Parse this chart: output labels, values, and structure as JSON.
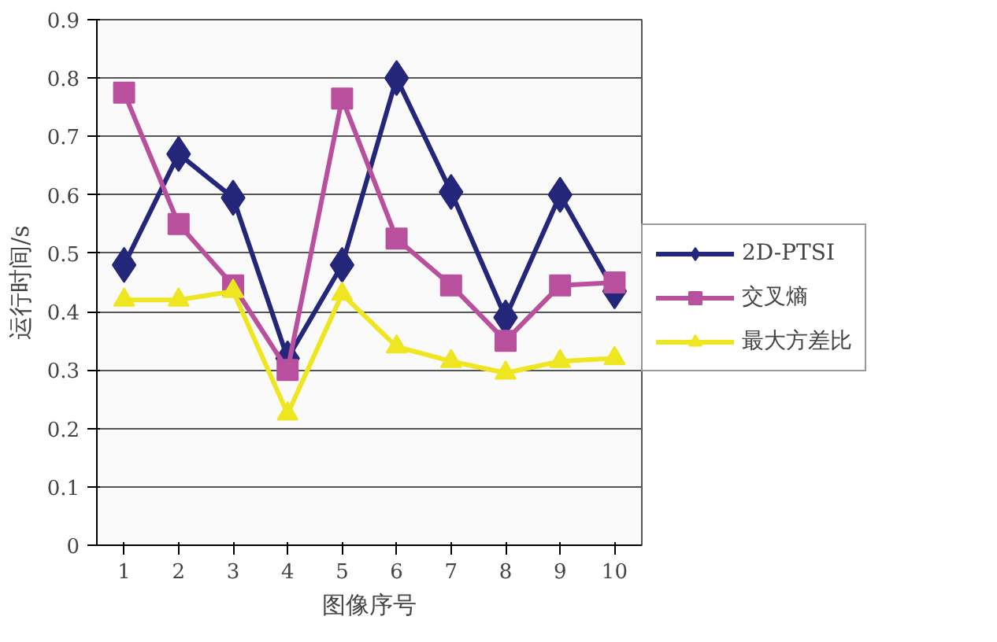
{
  "chart_data": {
    "type": "line",
    "xlabel": "图像序号",
    "ylabel": "运行时间/s",
    "categories": [
      "1",
      "2",
      "3",
      "4",
      "5",
      "6",
      "7",
      "8",
      "9",
      "10"
    ],
    "ylim": [
      0,
      0.9
    ],
    "yticks": [
      0,
      0.1,
      0.2,
      0.3,
      0.4,
      0.5,
      0.6,
      0.7,
      0.8,
      0.9
    ],
    "grid": "y",
    "legend": "right",
    "line_style": "solid",
    "series": [
      {
        "name": "2D-PTSI",
        "color": "#24267a",
        "marker": "diamond",
        "values": [
          0.48,
          0.67,
          0.595,
          0.32,
          0.48,
          0.8,
          0.605,
          0.39,
          0.6,
          0.435
        ]
      },
      {
        "name": "交叉熵",
        "color": "#b9509e",
        "marker": "square",
        "values": [
          0.775,
          0.55,
          0.445,
          0.3,
          0.765,
          0.525,
          0.445,
          0.35,
          0.445,
          0.45
        ]
      },
      {
        "name": "最大方差比",
        "color": "#eee620",
        "marker": "triangle",
        "values": [
          0.42,
          0.42,
          0.435,
          0.225,
          0.43,
          0.34,
          0.315,
          0.295,
          0.315,
          0.32
        ]
      }
    ]
  }
}
